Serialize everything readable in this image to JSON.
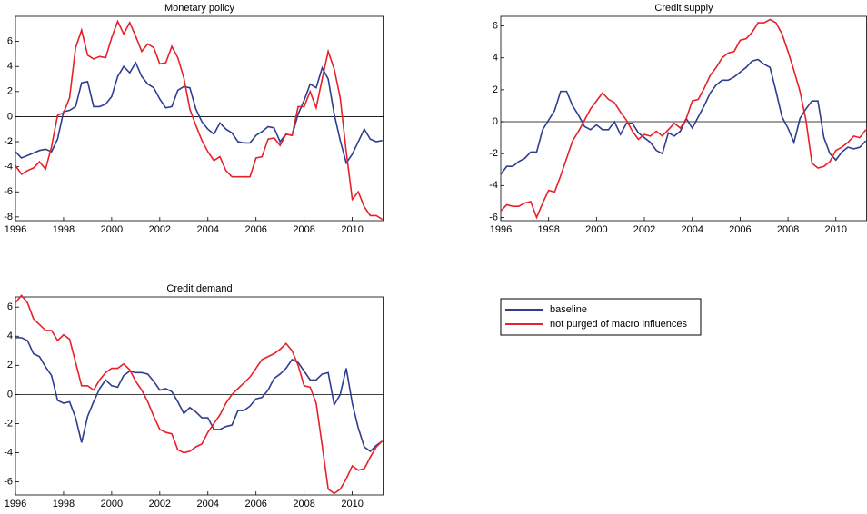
{
  "chart_data": [
    {
      "type": "line",
      "title": "Monetary policy",
      "x": [
        1996,
        1996.25,
        1996.5,
        1996.75,
        1997,
        1997.25,
        1997.5,
        1997.75,
        1998,
        1998.25,
        1998.5,
        1998.75,
        1999,
        1999.25,
        1999.5,
        1999.75,
        2000,
        2000.25,
        2000.5,
        2000.75,
        2001,
        2001.25,
        2001.5,
        2001.75,
        2002,
        2002.25,
        2002.5,
        2002.75,
        2003,
        2003.25,
        2003.5,
        2003.75,
        2004,
        2004.25,
        2004.5,
        2004.75,
        2005,
        2005.25,
        2005.5,
        2005.75,
        2006,
        2006.25,
        2006.5,
        2006.75,
        2007,
        2007.25,
        2007.5,
        2007.75,
        2008,
        2008.25,
        2008.5,
        2008.75,
        2009,
        2009.25,
        2009.5,
        2009.75,
        2010,
        2010.25,
        2010.5,
        2010.75,
        2011,
        2011.25
      ],
      "series": [
        {
          "name": "baseline",
          "color": "#2e3d8f",
          "values": [
            -2.8,
            -3.3,
            -3.1,
            -2.9,
            -2.7,
            -2.6,
            -2.8,
            -1.8,
            0.4,
            0.5,
            0.8,
            2.7,
            2.8,
            0.8,
            0.8,
            1.0,
            1.6,
            3.2,
            4.0,
            3.5,
            4.3,
            3.2,
            2.6,
            2.3,
            1.4,
            0.7,
            0.8,
            2.1,
            2.4,
            2.3,
            0.6,
            -0.4,
            -1.0,
            -1.4,
            -0.5,
            -1.0,
            -1.3,
            -2.0,
            -2.1,
            -2.1,
            -1.5,
            -1.2,
            -0.8,
            -0.9,
            -2.0,
            -1.4,
            -1.5,
            0.2,
            1.3,
            2.6,
            2.3,
            3.9,
            3.0,
            0.2,
            -1.9,
            -3.7,
            -3.0,
            -2.0,
            -1.0,
            -1.8,
            -2.0,
            -1.9
          ]
        },
        {
          "name": "not purged of macro influences",
          "color": "#e8202a",
          "values": [
            -3.9,
            -4.6,
            -4.3,
            -4.1,
            -3.6,
            -4.2,
            -2.4,
            0.1,
            0.3,
            1.5,
            5.5,
            6.9,
            4.9,
            4.6,
            4.8,
            4.7,
            6.3,
            7.6,
            6.6,
            7.5,
            6.4,
            5.2,
            5.8,
            5.5,
            4.2,
            4.3,
            5.6,
            4.7,
            3.1,
            0.6,
            -0.7,
            -1.9,
            -2.8,
            -3.5,
            -3.2,
            -4.3,
            -4.8,
            -4.8,
            -4.8,
            -4.8,
            -3.3,
            -3.2,
            -1.8,
            -1.7,
            -2.3,
            -1.4,
            -1.5,
            0.8,
            0.8,
            2.0,
            0.7,
            3.0,
            5.2,
            3.8,
            1.5,
            -2.8,
            -6.6,
            -6.0,
            -7.2,
            -7.9,
            -7.9,
            -8.2
          ]
        }
      ],
      "xlim": [
        1996,
        2011.3
      ],
      "xticks": [
        1996,
        1998,
        2000,
        2002,
        2004,
        2006,
        2008,
        2010
      ],
      "ylim": [
        -8.3,
        8.0
      ],
      "yticks": [
        -8,
        -6,
        -4,
        -2,
        0,
        2,
        4,
        6
      ]
    },
    {
      "type": "line",
      "title": "Credit supply",
      "x": [
        1996,
        1996.25,
        1996.5,
        1996.75,
        1997,
        1997.25,
        1997.5,
        1997.75,
        1998,
        1998.25,
        1998.5,
        1998.75,
        1999,
        1999.25,
        1999.5,
        1999.75,
        2000,
        2000.25,
        2000.5,
        2000.75,
        2001,
        2001.25,
        2001.5,
        2001.75,
        2002,
        2002.25,
        2002.5,
        2002.75,
        2003,
        2003.25,
        2003.5,
        2003.75,
        2004,
        2004.25,
        2004.5,
        2004.75,
        2005,
        2005.25,
        2005.5,
        2005.75,
        2006,
        2006.25,
        2006.5,
        2006.75,
        2007,
        2007.25,
        2007.5,
        2007.75,
        2008,
        2008.25,
        2008.5,
        2008.75,
        2009,
        2009.25,
        2009.5,
        2009.75,
        2010,
        2010.25,
        2010.5,
        2010.75,
        2011,
        2011.25
      ],
      "series": [
        {
          "name": "baseline",
          "color": "#2e3d8f",
          "values": [
            -3.3,
            -2.8,
            -2.8,
            -2.5,
            -2.3,
            -1.9,
            -1.9,
            -0.5,
            0.1,
            0.7,
            1.9,
            1.9,
            1.0,
            0.4,
            -0.3,
            -0.5,
            -0.2,
            -0.5,
            -0.5,
            0.0,
            -0.8,
            -0.1,
            -0.1,
            -0.7,
            -1.0,
            -1.3,
            -1.8,
            -2.0,
            -0.7,
            -0.9,
            -0.6,
            0.2,
            -0.4,
            0.3,
            1.0,
            1.8,
            2.3,
            2.6,
            2.6,
            2.8,
            3.1,
            3.4,
            3.8,
            3.9,
            3.6,
            3.4,
            1.9,
            0.3,
            -0.4,
            -1.3,
            0.2,
            0.8,
            1.3,
            1.3,
            -1.0,
            -2.0,
            -2.4,
            -1.9,
            -1.6,
            -1.7,
            -1.6,
            -1.2
          ]
        },
        {
          "name": "not purged of macro influences",
          "color": "#e8202a",
          "values": [
            -5.6,
            -5.2,
            -5.3,
            -5.3,
            -5.1,
            -5.0,
            -6.0,
            -5.1,
            -4.3,
            -4.4,
            -3.4,
            -2.3,
            -1.2,
            -0.6,
            0.1,
            0.8,
            1.3,
            1.8,
            1.4,
            1.2,
            0.6,
            0.1,
            -0.6,
            -1.1,
            -0.8,
            -0.9,
            -0.6,
            -0.9,
            -0.5,
            -0.1,
            -0.4,
            0.2,
            1.3,
            1.4,
            2.1,
            2.9,
            3.4,
            4.0,
            4.3,
            4.4,
            5.1,
            5.2,
            5.6,
            6.2,
            6.2,
            6.4,
            6.2,
            5.5,
            4.4,
            3.2,
            1.9,
            0.1,
            -2.6,
            -2.9,
            -2.8,
            -2.5,
            -1.8,
            -1.6,
            -1.3,
            -0.9,
            -1.0,
            -0.5
          ]
        }
      ],
      "xlim": [
        1996,
        2011.3
      ],
      "xticks": [
        1996,
        1998,
        2000,
        2002,
        2004,
        2006,
        2008,
        2010
      ],
      "ylim": [
        -6.2,
        6.6
      ],
      "yticks": [
        -6,
        -4,
        -2,
        0,
        2,
        4,
        6
      ]
    },
    {
      "type": "line",
      "title": "Credit demand",
      "x": [
        1996,
        1996.25,
        1996.5,
        1996.75,
        1997,
        1997.25,
        1997.5,
        1997.75,
        1998,
        1998.25,
        1998.5,
        1998.75,
        1999,
        1999.25,
        1999.5,
        1999.75,
        2000,
        2000.25,
        2000.5,
        2000.75,
        2001,
        2001.25,
        2001.5,
        2001.75,
        2002,
        2002.25,
        2002.5,
        2002.75,
        2003,
        2003.25,
        2003.5,
        2003.75,
        2004,
        2004.25,
        2004.5,
        2004.75,
        2005,
        2005.25,
        2005.5,
        2005.75,
        2006,
        2006.25,
        2006.5,
        2006.75,
        2007,
        2007.25,
        2007.5,
        2007.75,
        2008,
        2008.25,
        2008.5,
        2008.75,
        2009,
        2009.25,
        2009.5,
        2009.75,
        2010,
        2010.25,
        2010.5,
        2010.75,
        2011,
        2011.25
      ],
      "series": [
        {
          "name": "baseline",
          "color": "#2e3d8f",
          "values": [
            3.9,
            3.9,
            3.7,
            2.8,
            2.6,
            1.9,
            1.3,
            -0.4,
            -0.6,
            -0.5,
            -1.6,
            -3.3,
            -1.5,
            -0.5,
            0.4,
            1.0,
            0.6,
            0.5,
            1.3,
            1.6,
            1.5,
            1.5,
            1.4,
            0.9,
            0.3,
            0.4,
            0.2,
            -0.5,
            -1.3,
            -0.9,
            -1.2,
            -1.6,
            -1.6,
            -2.4,
            -2.4,
            -2.2,
            -2.1,
            -1.1,
            -1.1,
            -0.8,
            -0.3,
            -0.2,
            0.3,
            1.1,
            1.4,
            1.8,
            2.4,
            2.2,
            1.6,
            1.0,
            1.0,
            1.4,
            1.5,
            -0.7,
            0.0,
            1.8,
            -0.6,
            -2.3,
            -3.6,
            -3.9,
            -3.5,
            -3.2
          ]
        },
        {
          "name": "not purged of macro influences",
          "color": "#e8202a",
          "values": [
            6.3,
            6.8,
            6.3,
            5.2,
            4.8,
            4.4,
            4.4,
            3.7,
            4.1,
            3.8,
            2.2,
            0.6,
            0.6,
            0.3,
            1.0,
            1.5,
            1.8,
            1.8,
            2.1,
            1.7,
            0.9,
            0.3,
            -0.5,
            -1.5,
            -2.4,
            -2.6,
            -2.7,
            -3.8,
            -4.0,
            -3.9,
            -3.6,
            -3.4,
            -2.6,
            -2.0,
            -1.4,
            -0.6,
            0.0,
            0.4,
            0.8,
            1.2,
            1.8,
            2.4,
            2.6,
            2.8,
            3.1,
            3.5,
            3.0,
            2.0,
            0.6,
            0.5,
            -0.6,
            -3.5,
            -6.5,
            -6.8,
            -6.5,
            -5.8,
            -4.9,
            -5.2,
            -5.1,
            -4.3,
            -3.6,
            -3.2
          ]
        }
      ],
      "xlim": [
        1996,
        2011.3
      ],
      "xticks": [
        1996,
        1998,
        2000,
        2002,
        2004,
        2006,
        2008,
        2010
      ],
      "ylim": [
        -6.9,
        6.7
      ],
      "yticks": [
        -6,
        -4,
        -2,
        0,
        2,
        4,
        6
      ]
    }
  ]
}
